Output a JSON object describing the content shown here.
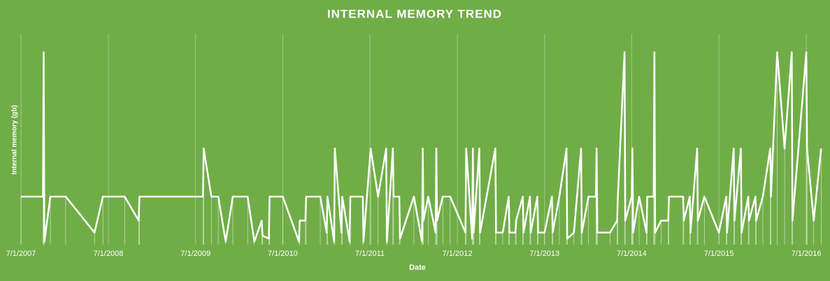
{
  "chart_data": {
    "type": "line",
    "title": "INTERNAL MEMORY TREND",
    "x_label": "Date",
    "y_label": "Internal memory (gb)",
    "x": [
      "2007-07-01",
      "2007-10-01",
      "2007-10-04",
      "2007-10-07",
      "2007-11-01",
      "2008-01-04",
      "2008-05-04",
      "2008-06-08",
      "2008-09-07",
      "2008-11-05",
      "2008-11-08",
      "2009-08-01",
      "2009-08-04",
      "2009-09-05",
      "2009-10-04",
      "2009-11-04",
      "2009-12-04",
      "2010-02-04",
      "2010-03-04",
      "2010-04-04",
      "2010-04-07",
      "2010-05-04",
      "2010-05-07",
      "2010-07-01",
      "2010-09-07",
      "2010-09-10",
      "2010-10-04",
      "2010-10-07",
      "2010-12-05",
      "2011-01-01",
      "2011-01-04",
      "2011-02-01",
      "2011-02-04",
      "2011-03-04",
      "2011-03-07",
      "2011-04-07",
      "2011-04-10",
      "2011-06-01",
      "2011-06-04",
      "2011-07-04",
      "2011-08-04",
      "2011-09-07",
      "2011-09-10",
      "2011-10-05",
      "2011-10-08",
      "2011-11-01",
      "2011-11-04",
      "2012-01-01",
      "2012-02-04",
      "2012-02-07",
      "2012-02-10",
      "2012-03-01",
      "2012-04-01",
      "2012-04-04",
      "2012-04-07",
      "2012-05-01",
      "2012-06-01",
      "2012-08-04",
      "2012-08-07",
      "2012-09-01",
      "2012-09-04",
      "2012-09-07",
      "2012-10-01",
      "2012-10-04",
      "2012-12-07",
      "2012-12-10",
      "2013-01-07",
      "2013-02-01",
      "2013-02-04",
      "2013-03-01",
      "2013-03-04",
      "2013-04-01",
      "2013-04-04",
      "2013-05-01",
      "2013-05-04",
      "2013-06-01",
      "2013-06-04",
      "2013-07-01",
      "2013-08-01",
      "2013-08-04",
      "2013-09-01",
      "2013-10-01",
      "2013-10-04",
      "2013-11-01",
      "2013-12-01",
      "2013-12-04",
      "2014-01-01",
      "2014-02-01",
      "2014-02-04",
      "2014-02-07",
      "2014-04-01",
      "2014-05-01",
      "2014-05-04",
      "2014-06-01",
      "2014-06-04",
      "2014-07-01",
      "2014-07-04",
      "2014-07-07",
      "2014-08-01",
      "2014-09-01",
      "2014-09-04",
      "2014-10-01",
      "2014-10-04",
      "2014-10-07",
      "2014-11-01",
      "2014-12-01",
      "2014-12-04",
      "2015-02-01",
      "2015-02-04",
      "2015-03-01",
      "2015-03-04",
      "2015-04-01",
      "2015-04-04",
      "2015-05-01",
      "2015-07-01",
      "2015-08-01",
      "2015-08-04",
      "2015-09-01",
      "2015-09-04",
      "2015-10-01",
      "2015-10-04",
      "2015-11-01",
      "2015-11-04",
      "2015-12-01",
      "2015-12-04",
      "2016-01-01",
      "2016-02-01",
      "2016-02-04",
      "2016-03-01",
      "2016-04-01",
      "2016-05-01",
      "2016-05-04",
      "2016-07-01",
      "2016-07-04",
      "2016-08-01",
      "2016-09-01"
    ],
    "values": [
      16,
      16,
      64,
      1,
      16,
      16,
      4,
      16,
      16,
      8,
      16,
      16,
      32,
      16,
      16,
      1,
      16,
      16,
      1,
      8,
      3,
      2,
      16,
      16,
      1,
      8,
      8,
      16,
      16,
      4,
      16,
      1,
      32,
      4,
      16,
      1,
      16,
      16,
      1,
      32,
      16,
      32,
      1,
      32,
      16,
      16,
      2,
      16,
      1,
      32,
      8,
      16,
      4,
      32,
      8,
      16,
      16,
      4,
      32,
      2,
      32,
      4,
      32,
      4,
      32,
      4,
      4,
      16,
      4,
      4,
      8,
      16,
      4,
      16,
      4,
      16,
      4,
      4,
      16,
      4,
      16,
      32,
      2,
      4,
      32,
      4,
      16,
      16,
      32,
      4,
      4,
      8,
      16,
      64,
      8,
      16,
      32,
      4,
      16,
      4,
      16,
      16,
      64,
      4,
      8,
      8,
      16,
      16,
      8,
      16,
      4,
      32,
      8,
      16,
      4,
      16,
      4,
      32,
      8,
      32,
      4,
      16,
      8,
      16,
      8,
      16,
      32,
      16,
      64,
      32,
      64,
      8,
      64,
      32,
      8,
      32
    ],
    "color": "#ffffff",
    "xlim": [
      "2007-07-01",
      "2016-09-03"
    ],
    "ylim": [
      0,
      70
    ],
    "xticks": [
      {
        "value": "2007-07-01",
        "label": "7/1/2007"
      },
      {
        "value": "2008-07-01",
        "label": "7/1/2008"
      },
      {
        "value": "2009-07-01",
        "label": "7/1/2009"
      },
      {
        "value": "2010-07-01",
        "label": "7/1/2010"
      },
      {
        "value": "2011-07-01",
        "label": "7/1/2011"
      },
      {
        "value": "2012-07-01",
        "label": "7/1/2012"
      },
      {
        "value": "2013-07-01",
        "label": "7/1/2013"
      },
      {
        "value": "2014-07-01",
        "label": "7/1/2014"
      },
      {
        "value": "2015-07-01",
        "label": "7/1/2015"
      },
      {
        "value": "2016-07-01",
        "label": "7/1/2016"
      }
    ],
    "grid": true,
    "drop_lines": true
  }
}
